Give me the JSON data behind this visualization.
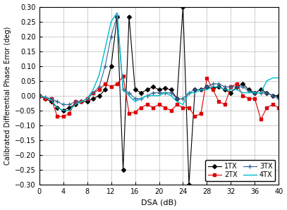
{
  "xlabel": "DSA (dB)",
  "ylabel": "Calibrated Differential Phase Error (deg)",
  "xlim": [
    0,
    40
  ],
  "ylim": [
    -0.3,
    0.3
  ],
  "xticks": [
    0,
    4,
    8,
    12,
    16,
    20,
    24,
    28,
    32,
    36,
    40
  ],
  "yticks": [
    -0.3,
    -0.25,
    -0.2,
    -0.15,
    -0.1,
    -0.05,
    0,
    0.05,
    0.1,
    0.15,
    0.2,
    0.25,
    0.3
  ],
  "colors": {
    "1TX": "#000000",
    "2TX": "#dd0000",
    "3TX": "#336699",
    "4TX": "#00bbcc"
  },
  "x": [
    0,
    1,
    2,
    3,
    4,
    5,
    6,
    7,
    8,
    9,
    10,
    11,
    12,
    13,
    14,
    15,
    16,
    17,
    18,
    19,
    20,
    21,
    22,
    23,
    24,
    25,
    26,
    27,
    28,
    29,
    30,
    31,
    32,
    33,
    34,
    35,
    36,
    37,
    38,
    39,
    40
  ],
  "y_1TX": [
    0.0,
    -0.01,
    -0.02,
    -0.04,
    -0.05,
    -0.04,
    -0.03,
    -0.02,
    -0.02,
    -0.01,
    0.0,
    0.02,
    0.1,
    0.265,
    -0.25,
    0.265,
    0.02,
    0.01,
    0.02,
    0.03,
    0.02,
    0.025,
    0.02,
    -0.01,
    0.3,
    -0.3,
    0.02,
    0.02,
    0.03,
    0.025,
    0.03,
    0.02,
    0.01,
    0.03,
    0.04,
    0.02,
    0.01,
    0.02,
    0.01,
    0.0,
    0.0
  ],
  "y_2TX": [
    0.0,
    -0.01,
    -0.01,
    -0.07,
    -0.07,
    -0.06,
    -0.02,
    -0.02,
    -0.01,
    0.01,
    0.02,
    0.04,
    0.03,
    0.04,
    0.065,
    -0.06,
    -0.055,
    -0.04,
    -0.03,
    -0.04,
    -0.03,
    -0.04,
    -0.05,
    -0.03,
    -0.04,
    -0.04,
    -0.07,
    -0.06,
    0.06,
    0.02,
    -0.02,
    -0.03,
    0.03,
    0.04,
    0.0,
    -0.01,
    -0.01,
    -0.08,
    -0.04,
    -0.03,
    -0.04
  ],
  "y_3TX": [
    0.0,
    -0.005,
    -0.01,
    -0.02,
    -0.03,
    -0.03,
    -0.02,
    -0.02,
    -0.01,
    0.01,
    0.03,
    0.1,
    0.2,
    0.27,
    0.02,
    0.01,
    -0.01,
    -0.01,
    0.0,
    0.01,
    0.01,
    0.01,
    0.01,
    -0.01,
    -0.01,
    0.01,
    0.02,
    0.02,
    0.03,
    0.04,
    0.04,
    0.03,
    0.03,
    0.03,
    0.03,
    0.015,
    0.01,
    0.01,
    0.01,
    0.0,
    -0.01
  ],
  "y_4TX": [
    0.0,
    -0.005,
    -0.015,
    -0.04,
    -0.05,
    -0.05,
    -0.03,
    -0.02,
    -0.01,
    0.02,
    0.07,
    0.16,
    0.25,
    0.28,
    0.02,
    0.0,
    -0.02,
    -0.01,
    0.0,
    0.0,
    0.0,
    0.01,
    0.0,
    -0.02,
    -0.03,
    0.01,
    0.01,
    0.02,
    0.02,
    0.03,
    0.03,
    0.02,
    0.02,
    0.02,
    0.01,
    0.01,
    0.01,
    0.01,
    0.05,
    0.06,
    0.06
  ]
}
